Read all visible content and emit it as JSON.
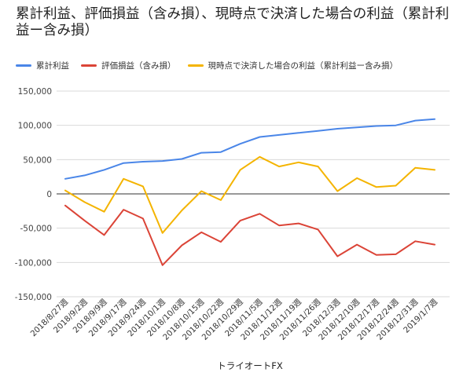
{
  "chart_data": {
    "type": "line",
    "title": "累計利益、評価損益（含み損）、現時点で決済した場合の利益（累計利益ー含み損）",
    "xlabel": "トライオートFX",
    "ylabel": "",
    "ylim": [
      -150000,
      150000
    ],
    "yticks": [
      150000,
      100000,
      50000,
      0,
      -50000,
      -100000,
      -150000
    ],
    "ytick_labels": [
      "150,000",
      "100,000",
      "50,000",
      "0",
      "-50,000",
      "-100,000",
      "-150,000"
    ],
    "grid": true,
    "legend_position": "top",
    "categories": [
      "2018/8/27週",
      "2018/9/2週",
      "2018/9/9週",
      "2018/9/17週",
      "2018/9/24週",
      "2018/10/1週",
      "2018/10/8週",
      "2018/10/15週",
      "2018/10/22週",
      "2018/10/29週",
      "2018/11/5週",
      "2018/11/12週",
      "2018/11/19週",
      "2018/11/26週",
      "2018/12/3週",
      "2018/12/10週",
      "2018/12/17週",
      "2018/12/24週",
      "2018/12/31週",
      "2019/1/7週"
    ],
    "series": [
      {
        "name": "累計利益",
        "color": "#4a86e8",
        "values": [
          22000,
          27000,
          35000,
          45000,
          47000,
          48000,
          51000,
          60000,
          61000,
          73000,
          83000,
          86000,
          89000,
          92000,
          95000,
          97000,
          99000,
          100000,
          107000,
          109000
        ]
      },
      {
        "name": "評価損益（含み損）",
        "color": "#db4437",
        "values": [
          -17000,
          -39000,
          -60000,
          -23000,
          -36000,
          -104000,
          -75000,
          -56000,
          -70000,
          -39000,
          -29000,
          -46000,
          -43000,
          -52000,
          -91000,
          -74000,
          -89000,
          -88000,
          -69000,
          -74000
        ]
      },
      {
        "name": "現時点で決済した場合の利益（累計利益ー含み損）",
        "color": "#f4b400",
        "values": [
          5000,
          -12000,
          -26000,
          22000,
          11000,
          -57000,
          -24000,
          4000,
          -9000,
          35000,
          54000,
          40000,
          46000,
          40000,
          4000,
          23000,
          10000,
          12000,
          38000,
          35000
        ]
      }
    ]
  }
}
